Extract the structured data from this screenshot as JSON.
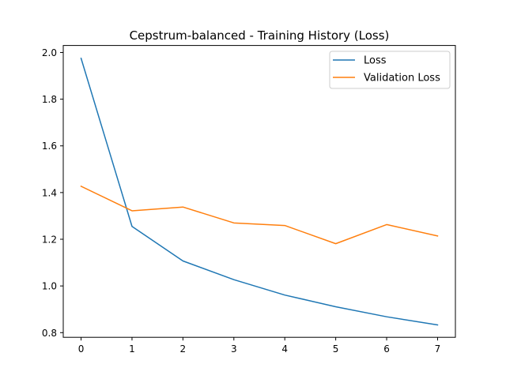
{
  "chart_data": {
    "type": "line",
    "title": "Cepstrum-balanced - Training History (Loss)",
    "xlabel": "",
    "ylabel": "",
    "x": [
      0,
      1,
      2,
      3,
      4,
      5,
      6,
      7
    ],
    "xticks": [
      "0",
      "1",
      "2",
      "3",
      "4",
      "5",
      "6",
      "7"
    ],
    "yticks": [
      "0.8",
      "1.0",
      "1.2",
      "1.4",
      "1.6",
      "1.8",
      "2.0"
    ],
    "xlim": [
      -0.35,
      7.35
    ],
    "ylim": [
      0.78,
      2.03
    ],
    "grid": false,
    "legend_position": "top-right",
    "series": [
      {
        "name": "Loss",
        "color": "#1f77b4",
        "values": [
          1.975,
          1.255,
          1.107,
          1.027,
          0.961,
          0.911,
          0.868,
          0.833
        ]
      },
      {
        "name": "Validation Loss",
        "color": "#ff7f0e",
        "values": [
          1.427,
          1.322,
          1.338,
          1.27,
          1.259,
          1.181,
          1.263,
          1.214
        ]
      }
    ]
  }
}
